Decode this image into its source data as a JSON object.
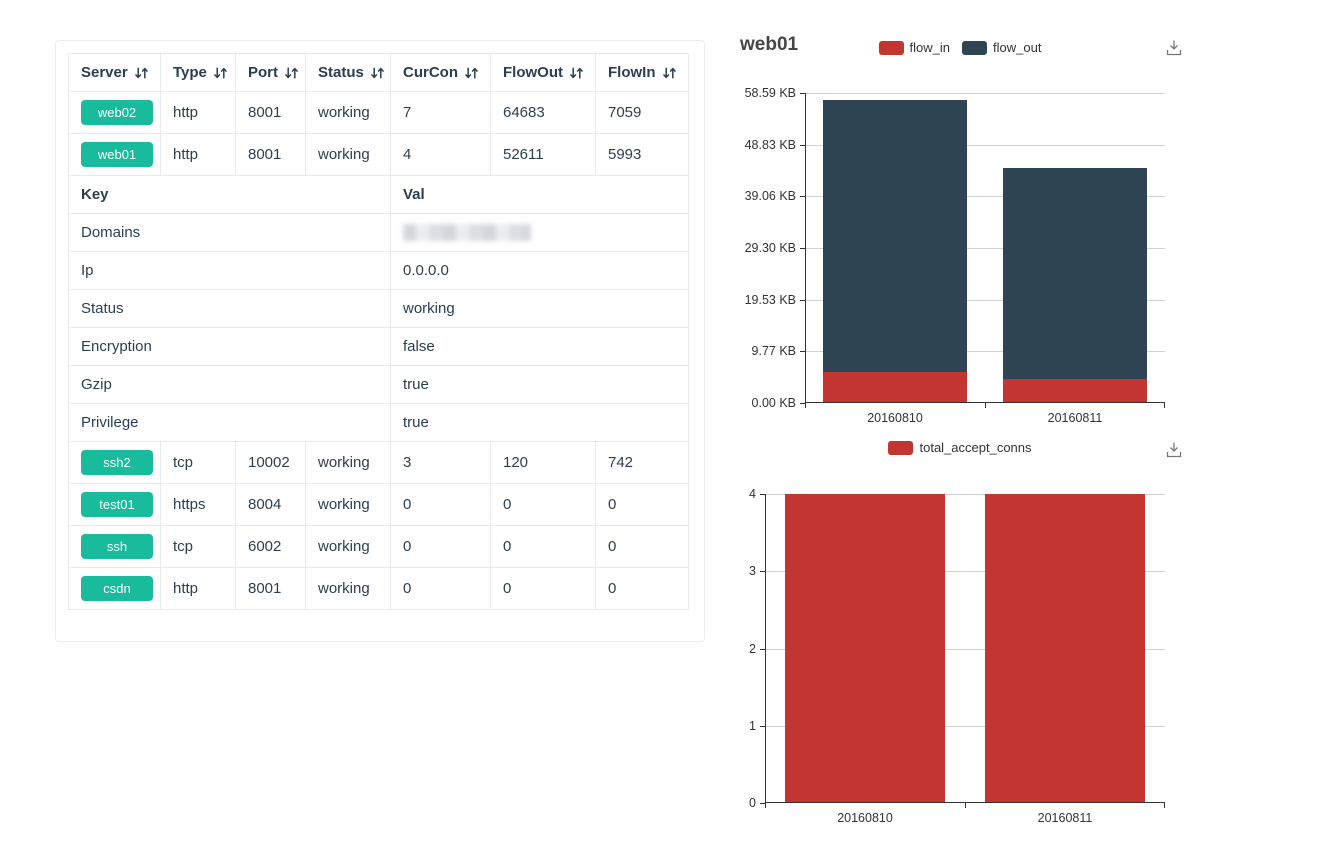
{
  "colors": {
    "badge_green": "#18bc9c",
    "chart_red": "#c23531",
    "chart_dark_blue": "#2f4554",
    "table_text": "#2c3e50",
    "axis": "#333333",
    "gridline": "#d3d3d3"
  },
  "table": {
    "columns": [
      {
        "label": "Server",
        "sortable": true
      },
      {
        "label": "Type",
        "sortable": true
      },
      {
        "label": "Port",
        "sortable": true
      },
      {
        "label": "Status",
        "sortable": true
      },
      {
        "label": "CurCon",
        "sortable": true
      },
      {
        "label": "FlowOut",
        "sortable": true
      },
      {
        "label": "FlowIn",
        "sortable": true
      }
    ],
    "top_rows": [
      {
        "server": "web02",
        "type": "http",
        "port": "8001",
        "status": "working",
        "curcon": "7",
        "flowout": "64683",
        "flowin": "7059"
      },
      {
        "server": "web01",
        "type": "http",
        "port": "8001",
        "status": "working",
        "curcon": "4",
        "flowout": "52611",
        "flowin": "5993"
      }
    ],
    "kv_header": {
      "key": "Key",
      "val": "Val"
    },
    "kv_rows": [
      {
        "key": "Domains",
        "val": "",
        "redacted": true
      },
      {
        "key": "Ip",
        "val": "0.0.0.0"
      },
      {
        "key": "Status",
        "val": "working"
      },
      {
        "key": "Encryption",
        "val": "false"
      },
      {
        "key": "Gzip",
        "val": "true"
      },
      {
        "key": "Privilege",
        "val": "true"
      }
    ],
    "bottom_rows": [
      {
        "server": "ssh2",
        "type": "tcp",
        "port": "10002",
        "status": "working",
        "curcon": "3",
        "flowout": "120",
        "flowin": "742"
      },
      {
        "server": "test01",
        "type": "https",
        "port": "8004",
        "status": "working",
        "curcon": "0",
        "flowout": "0",
        "flowin": "0"
      },
      {
        "server": "ssh",
        "type": "tcp",
        "port": "6002",
        "status": "working",
        "curcon": "0",
        "flowout": "0",
        "flowin": "0"
      },
      {
        "server": "csdn",
        "type": "http",
        "port": "8001",
        "status": "working",
        "curcon": "0",
        "flowout": "0",
        "flowin": "0"
      }
    ]
  },
  "chart_data": [
    {
      "type": "bar",
      "stacked": true,
      "title": "web01",
      "categories": [
        "20160810",
        "20160811"
      ],
      "series": [
        {
          "name": "flow_in",
          "color": "#c23531",
          "values": [
            5993,
            4700
          ]
        },
        {
          "name": "flow_out",
          "color": "#2f4554",
          "values": [
            52611,
            40800
          ]
        }
      ],
      "ylim": [
        0,
        60000
      ],
      "yticks": [
        "0.00 KB",
        "9.77 KB",
        "19.53 KB",
        "29.30 KB",
        "39.06 KB",
        "48.83 KB",
        "58.59 KB"
      ],
      "ylabel_unit": "KB",
      "grid": true,
      "legend_position": "top-center",
      "has_save_button": true
    },
    {
      "type": "bar",
      "stacked": false,
      "title": "",
      "categories": [
        "20160810",
        "20160811"
      ],
      "series": [
        {
          "name": "total_accept_conns",
          "color": "#c23531",
          "values": [
            4,
            4
          ]
        }
      ],
      "ylim": [
        0,
        4
      ],
      "yticks": [
        "0",
        "1",
        "2",
        "3",
        "4"
      ],
      "ylabel_unit": "",
      "grid": true,
      "legend_position": "top-center",
      "has_save_button": true
    }
  ]
}
